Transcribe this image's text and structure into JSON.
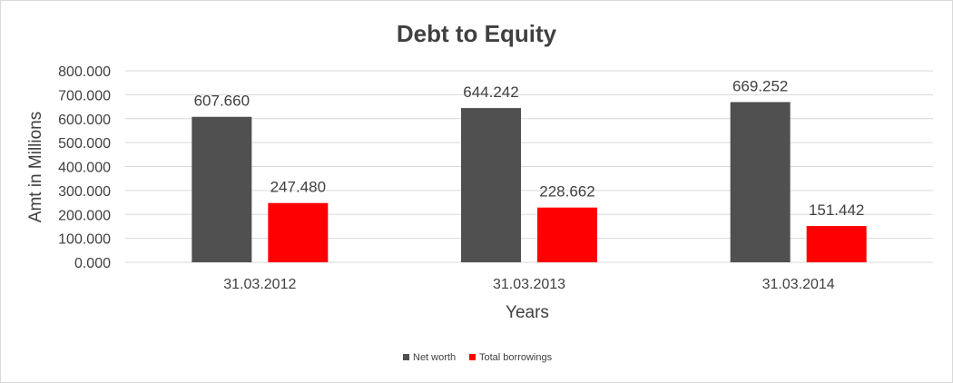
{
  "chart_data": {
    "type": "bar",
    "title": "Debt to Equity",
    "xlabel": "Years",
    "ylabel": "Amt in Millions",
    "categories": [
      "31.03.2012",
      "31.03.2013",
      "31.03.2014"
    ],
    "series": [
      {
        "name": "Net worth",
        "values": [
          607.66,
          644.242,
          669.252
        ],
        "labels": [
          "607.660",
          "644.242",
          "669.252"
        ],
        "color": "#505050"
      },
      {
        "name": "Total borrowings",
        "values": [
          247.48,
          228.662,
          151.442
        ],
        "labels": [
          "247.480",
          "228.662",
          "151.442"
        ],
        "color": "#ff0000"
      }
    ],
    "ylim": [
      0,
      800
    ],
    "yticks": [
      0,
      100,
      200,
      300,
      400,
      500,
      600,
      700,
      800
    ],
    "ytick_labels": [
      "0.000",
      "100.000",
      "200.000",
      "300.000",
      "400.000",
      "500.000",
      "600.000",
      "700.000",
      "800.000"
    ],
    "grid": true,
    "legend": "bottom"
  }
}
